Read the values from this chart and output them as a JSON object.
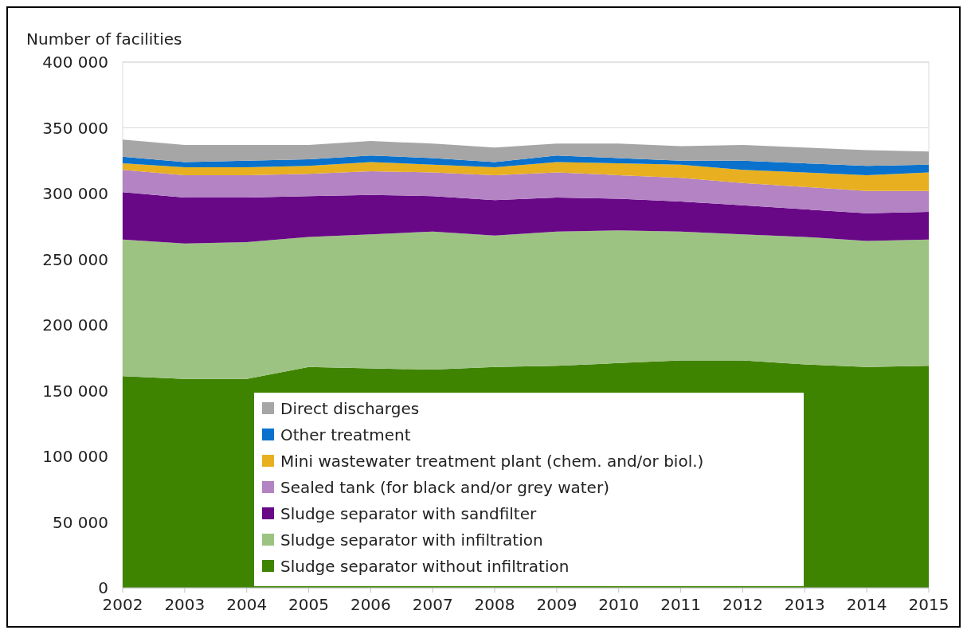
{
  "chart_data": {
    "type": "area",
    "stacked": true,
    "ylabel": "Number of facilities",
    "x": [
      2002,
      2003,
      2004,
      2005,
      2006,
      2007,
      2008,
      2009,
      2010,
      2011,
      2012,
      2013,
      2014,
      2015
    ],
    "xlim": [
      2002,
      2015
    ],
    "xticks": [
      2002,
      2003,
      2004,
      2005,
      2006,
      2007,
      2008,
      2009,
      2010,
      2011,
      2012,
      2013,
      2014,
      2015
    ],
    "ylim": [
      0,
      400000
    ],
    "yticks": [
      0,
      {
        "value": 50000,
        "label": "50 000"
      },
      {
        "value": 100000,
        "label": "100 000"
      },
      {
        "value": 150000,
        "label": "150 000"
      },
      {
        "value": 200000,
        "label": "200 000"
      },
      {
        "value": 250000,
        "label": "250 000"
      },
      {
        "value": 300000,
        "label": "300 000"
      },
      {
        "value": 350000,
        "label": "350 000"
      },
      {
        "value": 400000,
        "label": "400 000"
      }
    ],
    "grid": "y",
    "legend": "bottom",
    "series": [
      {
        "name": "Sludge separator without infiltration",
        "color": "#3f8400",
        "values": [
          161000,
          159000,
          159000,
          168000,
          167000,
          166000,
          168000,
          169000,
          171000,
          173000,
          173000,
          170000,
          168000,
          169000
        ]
      },
      {
        "name": "Sludge separator with infiltration",
        "color": "#9dc383",
        "values": [
          104000,
          103000,
          104000,
          99000,
          102000,
          105000,
          100000,
          102000,
          101000,
          98000,
          96000,
          97000,
          96000,
          96000
        ]
      },
      {
        "name": "Sludge separator with sandfilter",
        "color": "#680887",
        "values": [
          36000,
          35000,
          34000,
          31000,
          30000,
          27000,
          27000,
          26000,
          24000,
          23000,
          22000,
          21000,
          21000,
          21000
        ]
      },
      {
        "name": "Sealed tank (for black and/or grey water)",
        "color": "#b383c3",
        "values": [
          17000,
          17000,
          17000,
          17000,
          18000,
          18000,
          19000,
          19000,
          18000,
          18000,
          17000,
          17000,
          17000,
          16000
        ]
      },
      {
        "name": "Mini wastewater treatment plant (chem. and/or biol.)",
        "color": "#e8b020",
        "values": [
          5000,
          6000,
          6000,
          6000,
          7000,
          6000,
          6000,
          8000,
          9000,
          10000,
          10000,
          11000,
          12000,
          14000
        ]
      },
      {
        "name": "Other treatment",
        "color": "#0a72cc",
        "values": [
          5000,
          4000,
          5000,
          5000,
          5000,
          5000,
          4000,
          5000,
          4000,
          3000,
          7000,
          7000,
          7000,
          6000
        ]
      },
      {
        "name": "Direct discharges",
        "color": "#a6a6a6",
        "values": [
          13000,
          13000,
          12000,
          11000,
          11000,
          11000,
          11000,
          9000,
          11000,
          11000,
          12000,
          12000,
          12000,
          10000
        ]
      }
    ]
  }
}
